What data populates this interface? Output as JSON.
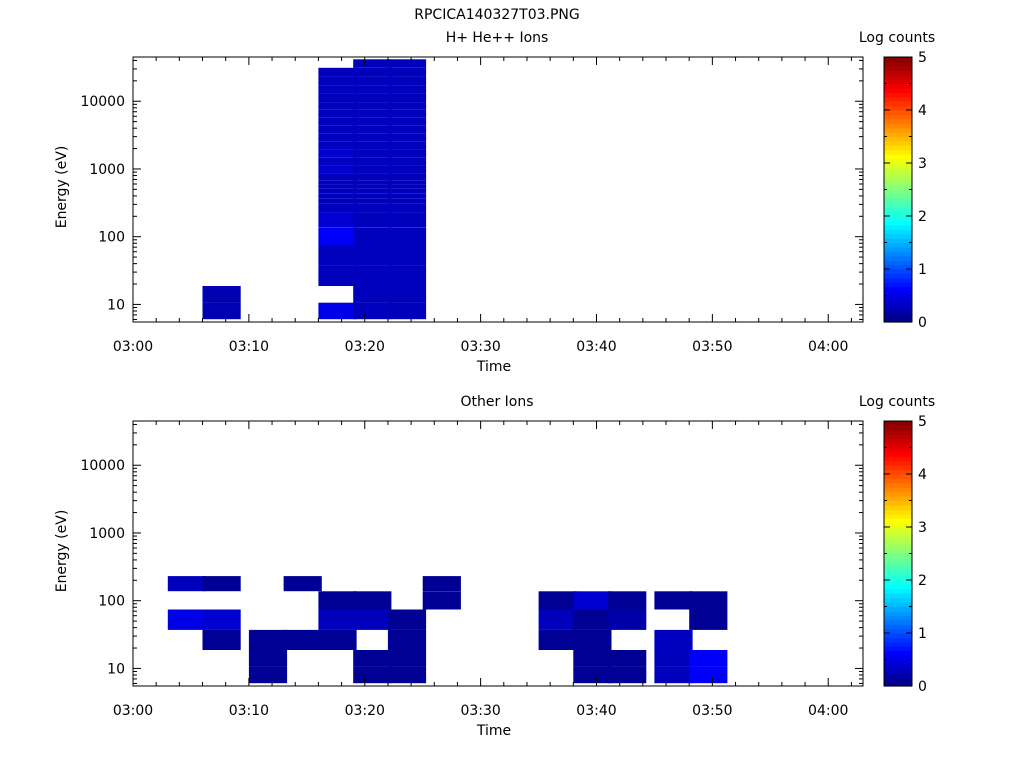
{
  "figure_title": "RPCICA140327T03.PNG",
  "chart_data": [
    {
      "type": "heatmap",
      "title": "H+ He++ Ions",
      "xlabel": "Time",
      "ylabel": "Energy (eV)",
      "x_range": [
        "03:00",
        "04:03"
      ],
      "y_scale": "log",
      "y_range": [
        5.5,
        45000
      ],
      "x_ticks": [
        "03:00",
        "03:10",
        "03:20",
        "03:30",
        "03:40",
        "03:50",
        "04:00"
      ],
      "y_ticks": [
        10,
        100,
        1000,
        10000
      ],
      "y_tick_labels": [
        "10",
        "100",
        "1000",
        "10000"
      ],
      "colorbar": {
        "title": "Log counts",
        "range": [
          0,
          5
        ],
        "ticks": [
          "0",
          "1",
          "2",
          "3",
          "4",
          "5"
        ]
      },
      "time_bins": [
        "03:03",
        "03:06",
        "03:10",
        "03:13",
        "03:16",
        "03:19",
        "03:22",
        "03:25",
        "03:29",
        "03:32",
        "03:35",
        "03:38",
        "03:41",
        "03:45",
        "03:48"
      ],
      "energy_bins": [
        8,
        14,
        25,
        55,
        100,
        190,
        280,
        340,
        400,
        480,
        560,
        640,
        730,
        1000,
        1300,
        1700,
        2200,
        2900,
        3800,
        5000,
        6500,
        8600,
        11000,
        15000,
        20000,
        27000,
        36000
      ],
      "z": [
        [
          0,
          0,
          0,
          0,
          0,
          0,
          0,
          0,
          0,
          0,
          0,
          0,
          0,
          0,
          0,
          0,
          0,
          0,
          0,
          0,
          0,
          0,
          0,
          0,
          0,
          0,
          0
        ],
        [
          0.25,
          0.25,
          0,
          0,
          0,
          0,
          0,
          0,
          0,
          0,
          0,
          0,
          0,
          0,
          0,
          0,
          0,
          0,
          0,
          0,
          0,
          0,
          0,
          0,
          0,
          0,
          0
        ],
        [
          0,
          0,
          0,
          0,
          0,
          0,
          0,
          0,
          0,
          0,
          0,
          0,
          0,
          0,
          0,
          0,
          0,
          0,
          0,
          0,
          0,
          0,
          0,
          0,
          0,
          0,
          0
        ],
        [
          0,
          0,
          0,
          0,
          0,
          0,
          0,
          0,
          0,
          0,
          0,
          0,
          0,
          0,
          0,
          0,
          0,
          0,
          0,
          0,
          0,
          0,
          0,
          0,
          0,
          0,
          0
        ],
        [
          0.5,
          0,
          0.3,
          0.3,
          0.6,
          0.4,
          0.3,
          0.3,
          0.3,
          0.3,
          0.3,
          0.3,
          0.3,
          0.4,
          0.3,
          0.4,
          0.3,
          0.3,
          0.3,
          0.3,
          0.3,
          0.3,
          0.3,
          0.3,
          0.3,
          0.3,
          0
        ],
        [
          0.3,
          0.3,
          0.3,
          0.3,
          0.3,
          0.3,
          0.3,
          0.3,
          0.3,
          0.3,
          0.3,
          0.3,
          0.3,
          0.3,
          0.3,
          0.3,
          0.3,
          0.3,
          0.3,
          0.3,
          0.3,
          0.3,
          0.3,
          0.3,
          0.3,
          0.3,
          0.3
        ],
        [
          0.3,
          0.3,
          0.3,
          0.3,
          0.3,
          0.3,
          0.3,
          0.3,
          0.3,
          0.3,
          0.3,
          0.3,
          0.3,
          0.3,
          0.3,
          0.3,
          0.3,
          0.3,
          0.3,
          0.3,
          0.3,
          0.3,
          0.3,
          0.3,
          0.3,
          0.3,
          0.3
        ],
        [
          0,
          0,
          0,
          0,
          0,
          0,
          0,
          0,
          0,
          0,
          0,
          0,
          0,
          0,
          0,
          0,
          0,
          0,
          0,
          0,
          0,
          0,
          0,
          0,
          0,
          0,
          0
        ],
        [
          0,
          0,
          0,
          0,
          0,
          0,
          0,
          0,
          0,
          0,
          0,
          0,
          0,
          0,
          0,
          0,
          0,
          0,
          0,
          0,
          0,
          0,
          0,
          0,
          0,
          0,
          0
        ],
        [
          0,
          0,
          0,
          0,
          0,
          0,
          0,
          0,
          0,
          0,
          0,
          0,
          0,
          0,
          0,
          0,
          0,
          0,
          0,
          0,
          0,
          0,
          0,
          0,
          0,
          0,
          0
        ],
        [
          0,
          0,
          0,
          0,
          0,
          0,
          0,
          0,
          0,
          0,
          0,
          0,
          0,
          0,
          0,
          0,
          0,
          0,
          0,
          0,
          0,
          0,
          0,
          0,
          0,
          0,
          0
        ],
        [
          0,
          0,
          0,
          0,
          0,
          0,
          0,
          0,
          0,
          0,
          0,
          0,
          0,
          0,
          0,
          0,
          0,
          0,
          0,
          0,
          0,
          0,
          0,
          0,
          0,
          0,
          0
        ],
        [
          0,
          0,
          0,
          0,
          0,
          0,
          0,
          0,
          0,
          0,
          0,
          0,
          0,
          0,
          0,
          0,
          0,
          0,
          0,
          0,
          0,
          0,
          0,
          0,
          0,
          0,
          0
        ],
        [
          0,
          0,
          0,
          0,
          0,
          0,
          0,
          0,
          0,
          0,
          0,
          0,
          0,
          0,
          0,
          0,
          0,
          0,
          0,
          0,
          0,
          0,
          0,
          0,
          0,
          0,
          0
        ],
        [
          0,
          0,
          0,
          0,
          0,
          0,
          0,
          0,
          0,
          0,
          0,
          0,
          0,
          0,
          0,
          0,
          0,
          0,
          0,
          0,
          0,
          0,
          0,
          0,
          0,
          0,
          0
        ]
      ]
    },
    {
      "type": "heatmap",
      "title": "Other Ions",
      "xlabel": "Time",
      "ylabel": "Energy (eV)",
      "x_range": [
        "03:00",
        "04:03"
      ],
      "y_scale": "log",
      "y_range": [
        5.5,
        45000
      ],
      "x_ticks": [
        "03:00",
        "03:10",
        "03:20",
        "03:30",
        "03:40",
        "03:50",
        "04:00"
      ],
      "y_ticks": [
        10,
        100,
        1000,
        10000
      ],
      "y_tick_labels": [
        "10",
        "100",
        "1000",
        "10000"
      ],
      "colorbar": {
        "title": "Log counts",
        "range": [
          0,
          5
        ],
        "ticks": [
          "0",
          "1",
          "2",
          "3",
          "4",
          "5"
        ]
      },
      "time_bins": [
        "03:03",
        "03:06",
        "03:10",
        "03:13",
        "03:16",
        "03:19",
        "03:22",
        "03:25",
        "03:29",
        "03:32",
        "03:35",
        "03:38",
        "03:41",
        "03:45",
        "03:48"
      ],
      "energy_bins": [
        8,
        14,
        25,
        55,
        100,
        190,
        280,
        340,
        400,
        480,
        560,
        640,
        730,
        1000,
        1300,
        1700,
        2200,
        2900,
        3800,
        5000,
        6500,
        8600,
        11000,
        15000,
        20000,
        27000,
        36000
      ],
      "z": [
        [
          0,
          0,
          0,
          0.5,
          0,
          0.3,
          0,
          0,
          0,
          0,
          0,
          0,
          0,
          0,
          0,
          0,
          0,
          0,
          0,
          0,
          0,
          0,
          0,
          0,
          0,
          0,
          0
        ],
        [
          0,
          0,
          0.1,
          0.4,
          0,
          0.1,
          0,
          0,
          0,
          0,
          0,
          0,
          0,
          0,
          0,
          0,
          0,
          0,
          0,
          0,
          0,
          0,
          0,
          0,
          0,
          0,
          0
        ],
        [
          0.1,
          0.1,
          0.1,
          0,
          0,
          0,
          0,
          0,
          0,
          0,
          0,
          0,
          0,
          0,
          0,
          0,
          0,
          0,
          0,
          0,
          0,
          0,
          0,
          0,
          0,
          0,
          0
        ],
        [
          0,
          0,
          0.1,
          0,
          0,
          0.1,
          0,
          0,
          0,
          0,
          0,
          0,
          0,
          0,
          0,
          0,
          0,
          0,
          0,
          0,
          0,
          0,
          0,
          0,
          0,
          0,
          0
        ],
        [
          0,
          0,
          0.1,
          0.3,
          0.1,
          0,
          0,
          0,
          0,
          0,
          0,
          0,
          0,
          0,
          0,
          0,
          0,
          0,
          0,
          0,
          0,
          0,
          0,
          0,
          0,
          0,
          0
        ],
        [
          0.1,
          0.1,
          0,
          0.3,
          0.1,
          0,
          0,
          0,
          0,
          0,
          0,
          0,
          0,
          0,
          0,
          0,
          0,
          0,
          0,
          0,
          0,
          0,
          0,
          0,
          0,
          0,
          0
        ],
        [
          0.1,
          0.1,
          0.1,
          0.1,
          0,
          0,
          0,
          0,
          0,
          0,
          0,
          0,
          0,
          0,
          0,
          0,
          0,
          0,
          0,
          0,
          0,
          0,
          0,
          0,
          0,
          0,
          0
        ],
        [
          0,
          0,
          0,
          0,
          0.1,
          0.1,
          0,
          0,
          0,
          0,
          0,
          0,
          0,
          0,
          0,
          0,
          0,
          0,
          0,
          0,
          0,
          0,
          0,
          0,
          0,
          0,
          0
        ],
        [
          0,
          0,
          0,
          0,
          0,
          0,
          0,
          0,
          0,
          0,
          0,
          0,
          0,
          0,
          0,
          0,
          0,
          0,
          0,
          0,
          0,
          0,
          0,
          0,
          0,
          0,
          0
        ],
        [
          0,
          0,
          0,
          0,
          0,
          0,
          0,
          0,
          0,
          0,
          0,
          0,
          0,
          0,
          0,
          0,
          0,
          0,
          0,
          0,
          0,
          0,
          0,
          0,
          0,
          0,
          0
        ],
        [
          0,
          0,
          0.1,
          0.3,
          0.1,
          0,
          0,
          0,
          0,
          0,
          0,
          0,
          0,
          0,
          0,
          0,
          0,
          0,
          0,
          0,
          0,
          0,
          0,
          0,
          0,
          0,
          0
        ],
        [
          0.1,
          0.1,
          0.1,
          0.1,
          0.4,
          0,
          0,
          0,
          0,
          0,
          0,
          0,
          0,
          0,
          0,
          0,
          0,
          0,
          0,
          0,
          0,
          0,
          0,
          0,
          0,
          0,
          0
        ],
        [
          0.1,
          0.1,
          0,
          0.2,
          0.1,
          0,
          0,
          0,
          0,
          0,
          0,
          0,
          0,
          0,
          0,
          0,
          0,
          0,
          0,
          0,
          0,
          0,
          0,
          0,
          0,
          0,
          0
        ],
        [
          0.3,
          0.3,
          0.3,
          0,
          0.1,
          0,
          0,
          0,
          0,
          0,
          0,
          0,
          0,
          0,
          0,
          0,
          0,
          0,
          0,
          0,
          0,
          0,
          0,
          0,
          0,
          0,
          0
        ],
        [
          0.6,
          0.6,
          0,
          0.1,
          0.1,
          0,
          0,
          0,
          0,
          0,
          0,
          0,
          0,
          0,
          0,
          0,
          0,
          0,
          0,
          0,
          0,
          0,
          0,
          0,
          0,
          0,
          0
        ]
      ]
    }
  ]
}
